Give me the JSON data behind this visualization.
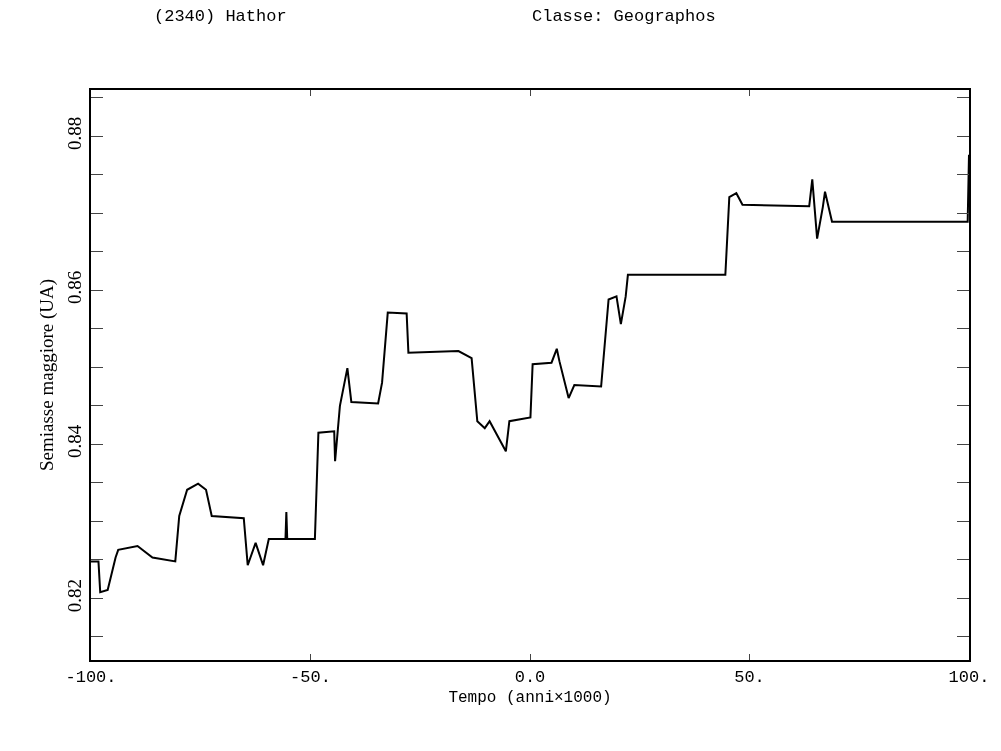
{
  "chart_data": {
    "type": "line",
    "title": "(2340) Hathor",
    "subtitle": "Classe: Geographos",
    "xlabel": "Tempo (anni×1000)",
    "ylabel": "Semiasse maggiore (UA)",
    "xlim": [
      -100,
      100
    ],
    "ylim": [
      0.812,
      0.886
    ],
    "xticks": [
      {
        "value": -100,
        "label": "-100."
      },
      {
        "value": -50,
        "label": "-50."
      },
      {
        "value": 0,
        "label": "0.0"
      },
      {
        "value": 50,
        "label": "50."
      },
      {
        "value": 100,
        "label": "100."
      }
    ],
    "yticks": [
      {
        "value": 0.815,
        "label": null
      },
      0.82,
      {
        "value": 0.825,
        "label": null
      },
      {
        "value": 0.83,
        "label": null
      },
      {
        "value": 0.835,
        "label": null
      },
      0.84,
      {
        "value": 0.845,
        "label": null
      },
      {
        "value": 0.85,
        "label": null
      },
      {
        "value": 0.855,
        "label": null
      },
      0.86,
      {
        "value": 0.865,
        "label": null
      },
      {
        "value": 0.87,
        "label": null
      },
      {
        "value": 0.875,
        "label": null
      },
      0.88,
      {
        "value": 0.885,
        "label": null
      }
    ],
    "marker": "none",
    "line_style": "solid",
    "series": [
      {
        "color": "#000000",
        "x": [
          -100,
          -98.3,
          -97.9,
          -96.2,
          -94.4,
          -93.8,
          -89.4,
          -86,
          -80.8,
          -79.9,
          -78.1,
          -75.6,
          -73.8,
          -72.5,
          -65.2,
          -64.3,
          -62.5,
          -60.8,
          -59.5,
          -55.7,
          -55.5,
          -55.3,
          -49.0,
          -48.2,
          -44.6,
          -44.4,
          -43.3,
          -41.6,
          -40.7,
          -34.6,
          -33.7,
          -32.4,
          -28.1,
          -27.7,
          -16.3,
          -13.3,
          -12.0,
          -10.3,
          -9.2,
          -5.5,
          -4.7,
          0.1,
          0.6,
          4.9,
          6.1,
          6.7,
          8.8,
          10.1,
          16.2,
          17.9,
          19.7,
          20.7,
          21.8,
          22.3,
          44.5,
          45.4,
          47,
          48.4,
          63.6,
          64.3,
          65.4,
          66.7,
          67.2,
          68.8,
          99.7,
          100
        ],
        "values": [
          0.8248,
          0.8248,
          0.8208,
          0.8211,
          0.8253,
          0.8263,
          0.8268,
          0.8253,
          0.8248,
          0.8307,
          0.8341,
          0.8349,
          0.8341,
          0.8307,
          0.8304,
          0.8243,
          0.8272,
          0.8243,
          0.8277,
          0.8277,
          0.8312,
          0.8277,
          0.8277,
          0.8415,
          0.8417,
          0.8378,
          0.845,
          0.8499,
          0.8455,
          0.8453,
          0.848,
          0.8571,
          0.857,
          0.8519,
          0.8521,
          0.8512,
          0.843,
          0.8421,
          0.843,
          0.8391,
          0.843,
          0.8435,
          0.8504,
          0.8506,
          0.8524,
          0.8508,
          0.846,
          0.8477,
          0.8475,
          0.8588,
          0.8592,
          0.8556,
          0.8592,
          0.862,
          0.862,
          0.8721,
          0.8726,
          0.8711,
          0.8709,
          0.8744,
          0.8667,
          0.8708,
          0.8728,
          0.8689,
          0.8689,
          0.8776
        ]
      }
    ]
  }
}
